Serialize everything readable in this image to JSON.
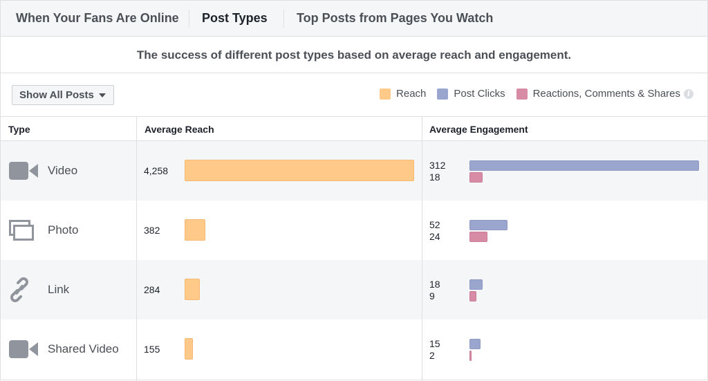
{
  "tabs": [
    {
      "label": "When Your Fans Are Online"
    },
    {
      "label": "Post Types"
    },
    {
      "label": "Top Posts from Pages You Watch"
    }
  ],
  "subtitle": "The success of different post types based on average reach and engagement.",
  "filter": {
    "label": "Show All Posts"
  },
  "legend": [
    {
      "label": "Reach",
      "color": "#ffc989"
    },
    {
      "label": "Post Clicks",
      "color": "#9ba6cf"
    },
    {
      "label": "Reactions, Comments & Shares",
      "color": "#d78ba4"
    }
  ],
  "table": {
    "headers": {
      "type": "Type",
      "reach": "Average Reach",
      "engagement": "Average Engagement"
    },
    "rows": [
      {
        "type": "Video",
        "icon": "video-camera-icon",
        "reach": "4,258",
        "reach_value": 4258,
        "clicks": "312",
        "clicks_value": 312,
        "reactions": "18",
        "reactions_value": 18
      },
      {
        "type": "Photo",
        "icon": "photo-stack-icon",
        "reach": "382",
        "reach_value": 382,
        "clicks": "52",
        "clicks_value": 52,
        "reactions": "24",
        "reactions_value": 24
      },
      {
        "type": "Link",
        "icon": "link-icon",
        "reach": "284",
        "reach_value": 284,
        "clicks": "18",
        "clicks_value": 18,
        "reactions": "9",
        "reactions_value": 9
      },
      {
        "type": "Shared Video",
        "icon": "video-camera-icon",
        "reach": "155",
        "reach_value": 155,
        "clicks": "15",
        "clicks_value": 15,
        "reactions": "2",
        "reactions_value": 2
      }
    ]
  }
}
